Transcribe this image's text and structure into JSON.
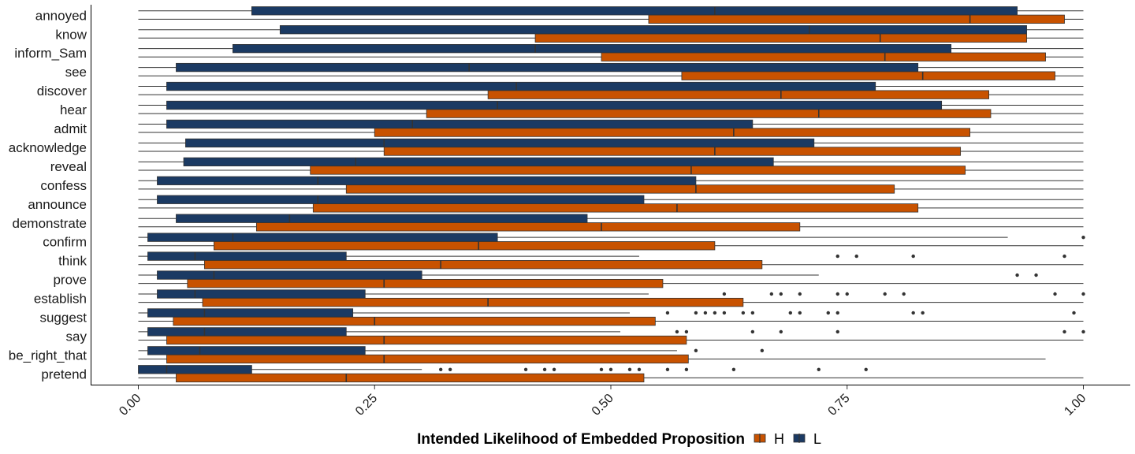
{
  "chart_data": {
    "type": "boxplot",
    "orientation": "horizontal",
    "xlabel": "",
    "ylabel": "",
    "xlim": [
      0,
      1
    ],
    "x_ticks": [
      "0.00",
      "0.25",
      "0.50",
      "0.75",
      "1.00"
    ],
    "legend": {
      "title": "Intended Likelihood of Embedded Proposition",
      "position": "bottom",
      "items": [
        {
          "label": "H",
          "color": "#c85200"
        },
        {
          "label": "L",
          "color": "#1b3a63"
        }
      ]
    },
    "colors": {
      "H": "#c85200",
      "L": "#1b3a63"
    },
    "categories": [
      "annoyed",
      "know",
      "inform_Sam",
      "see",
      "discover",
      "hear",
      "admit",
      "acknowledge",
      "reveal",
      "confess",
      "announce",
      "demonstrate",
      "confirm",
      "think",
      "prove",
      "establish",
      "suggest",
      "say",
      "be_right_that",
      "pretend"
    ],
    "series": [
      {
        "name": "L",
        "boxes": [
          {
            "min": 0.0,
            "q1": 0.12,
            "median": 0.61,
            "q3": 0.93,
            "max": 1.0,
            "outliers": []
          },
          {
            "min": 0.0,
            "q1": 0.15,
            "median": 0.71,
            "q3": 0.94,
            "max": 1.0,
            "outliers": []
          },
          {
            "min": 0.0,
            "q1": 0.1,
            "median": 0.42,
            "q3": 0.86,
            "max": 1.0,
            "outliers": []
          },
          {
            "min": 0.0,
            "q1": 0.04,
            "median": 0.35,
            "q3": 0.825,
            "max": 1.0,
            "outliers": []
          },
          {
            "min": 0.0,
            "q1": 0.03,
            "median": 0.4,
            "q3": 0.78,
            "max": 1.0,
            "outliers": []
          },
          {
            "min": 0.0,
            "q1": 0.03,
            "median": 0.38,
            "q3": 0.85,
            "max": 1.0,
            "outliers": []
          },
          {
            "min": 0.0,
            "q1": 0.03,
            "median": 0.29,
            "q3": 0.65,
            "max": 1.0,
            "outliers": []
          },
          {
            "min": 0.0,
            "q1": 0.05,
            "median": 0.26,
            "q3": 0.715,
            "max": 1.0,
            "outliers": []
          },
          {
            "min": 0.0,
            "q1": 0.048,
            "median": 0.23,
            "q3": 0.672,
            "max": 1.0,
            "outliers": []
          },
          {
            "min": 0.0,
            "q1": 0.02,
            "median": 0.19,
            "q3": 0.59,
            "max": 1.0,
            "outliers": []
          },
          {
            "min": 0.0,
            "q1": 0.02,
            "median": 0.19,
            "q3": 0.535,
            "max": 1.0,
            "outliers": []
          },
          {
            "min": 0.0,
            "q1": 0.04,
            "median": 0.16,
            "q3": 0.475,
            "max": 1.0,
            "outliers": []
          },
          {
            "min": 0.0,
            "q1": 0.01,
            "median": 0.1,
            "q3": 0.38,
            "max": 0.92,
            "outliers": [
              1.0
            ]
          },
          {
            "min": 0.0,
            "q1": 0.01,
            "median": 0.06,
            "q3": 0.22,
            "max": 0.53,
            "outliers": [
              0.74,
              0.76,
              0.82,
              0.98
            ]
          },
          {
            "min": 0.0,
            "q1": 0.02,
            "median": 0.08,
            "q3": 0.3,
            "max": 0.72,
            "outliers": [
              0.93,
              0.95
            ]
          },
          {
            "min": 0.0,
            "q1": 0.02,
            "median": 0.06,
            "q3": 0.24,
            "max": 0.54,
            "outliers": [
              0.62,
              0.67,
              0.68,
              0.7,
              0.74,
              0.75,
              0.79,
              0.81,
              0.97,
              1.0
            ]
          },
          {
            "min": 0.0,
            "q1": 0.01,
            "median": 0.07,
            "q3": 0.227,
            "max": 0.52,
            "outliers": [
              0.56,
              0.59,
              0.6,
              0.61,
              0.62,
              0.64,
              0.65,
              0.69,
              0.7,
              0.73,
              0.74,
              0.82,
              0.83,
              0.99
            ]
          },
          {
            "min": 0.0,
            "q1": 0.01,
            "median": 0.07,
            "q3": 0.22,
            "max": 0.51,
            "outliers": [
              0.57,
              0.58,
              0.65,
              0.68,
              0.74,
              0.98,
              1.0
            ]
          },
          {
            "min": 0.0,
            "q1": 0.01,
            "median": 0.065,
            "q3": 0.24,
            "max": 0.57,
            "outliers": [
              0.59,
              0.66
            ]
          },
          {
            "min": 0.0,
            "q1": 0.0,
            "median": 0.03,
            "q3": 0.12,
            "max": 0.3,
            "outliers": [
              0.32,
              0.33,
              0.41,
              0.43,
              0.44,
              0.49,
              0.5,
              0.52,
              0.53,
              0.56,
              0.58,
              0.63,
              0.72,
              0.77
            ]
          }
        ]
      },
      {
        "name": "H",
        "boxes": [
          {
            "min": 0.0,
            "q1": 0.54,
            "median": 0.88,
            "q3": 0.98,
            "max": 1.0,
            "outliers": []
          },
          {
            "min": 0.0,
            "q1": 0.42,
            "median": 0.785,
            "q3": 0.94,
            "max": 1.0,
            "outliers": []
          },
          {
            "min": 0.0,
            "q1": 0.49,
            "median": 0.79,
            "q3": 0.96,
            "max": 1.0,
            "outliers": []
          },
          {
            "min": 0.0,
            "q1": 0.575,
            "median": 0.83,
            "q3": 0.97,
            "max": 1.0,
            "outliers": []
          },
          {
            "min": 0.0,
            "q1": 0.37,
            "median": 0.68,
            "q3": 0.9,
            "max": 1.0,
            "outliers": []
          },
          {
            "min": 0.0,
            "q1": 0.305,
            "median": 0.72,
            "q3": 0.902,
            "max": 1.0,
            "outliers": []
          },
          {
            "min": 0.0,
            "q1": 0.25,
            "median": 0.63,
            "q3": 0.88,
            "max": 1.0,
            "outliers": []
          },
          {
            "min": 0.0,
            "q1": 0.26,
            "median": 0.61,
            "q3": 0.87,
            "max": 1.0,
            "outliers": []
          },
          {
            "min": 0.0,
            "q1": 0.182,
            "median": 0.585,
            "q3": 0.875,
            "max": 1.0,
            "outliers": []
          },
          {
            "min": 0.0,
            "q1": 0.22,
            "median": 0.59,
            "q3": 0.8,
            "max": 1.0,
            "outliers": []
          },
          {
            "min": 0.0,
            "q1": 0.185,
            "median": 0.57,
            "q3": 0.825,
            "max": 1.0,
            "outliers": []
          },
          {
            "min": 0.0,
            "q1": 0.125,
            "median": 0.49,
            "q3": 0.7,
            "max": 1.0,
            "outliers": []
          },
          {
            "min": 0.0,
            "q1": 0.08,
            "median": 0.36,
            "q3": 0.61,
            "max": 1.0,
            "outliers": []
          },
          {
            "min": 0.0,
            "q1": 0.07,
            "median": 0.32,
            "q3": 0.66,
            "max": 1.0,
            "outliers": []
          },
          {
            "min": 0.0,
            "q1": 0.052,
            "median": 0.26,
            "q3": 0.555,
            "max": 1.0,
            "outliers": []
          },
          {
            "min": 0.0,
            "q1": 0.068,
            "median": 0.37,
            "q3": 0.64,
            "max": 1.0,
            "outliers": []
          },
          {
            "min": 0.0,
            "q1": 0.037,
            "median": 0.25,
            "q3": 0.547,
            "max": 1.0,
            "outliers": []
          },
          {
            "min": 0.0,
            "q1": 0.03,
            "median": 0.26,
            "q3": 0.58,
            "max": 1.0,
            "outliers": []
          },
          {
            "min": 0.0,
            "q1": 0.03,
            "median": 0.26,
            "q3": 0.582,
            "max": 0.96,
            "outliers": []
          },
          {
            "min": 0.0,
            "q1": 0.04,
            "median": 0.22,
            "q3": 0.535,
            "max": 1.0,
            "outliers": []
          }
        ]
      }
    ]
  }
}
